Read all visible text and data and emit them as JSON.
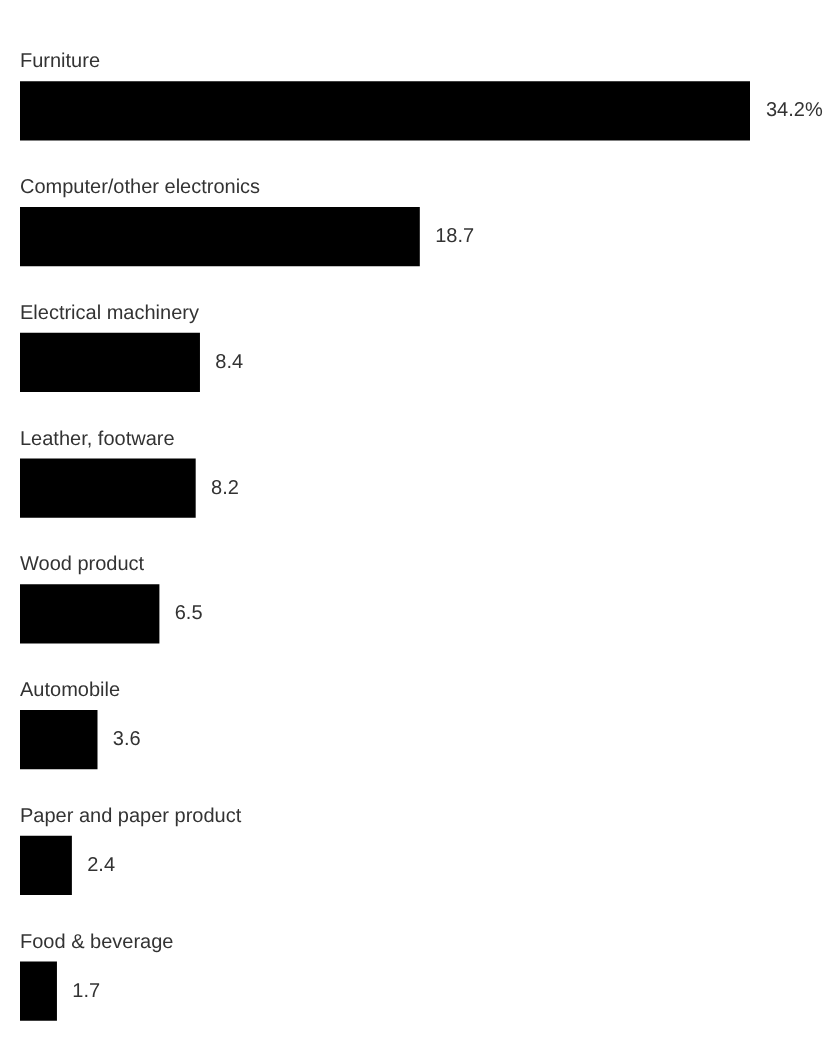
{
  "chart_data": {
    "type": "bar",
    "orientation": "horizontal",
    "categories": [
      "Furniture",
      "Computer/other electronics",
      "Electrical machinery",
      "Leather, footware",
      "Wood product",
      "Automobile",
      "Paper and paper product",
      "Food & beverage"
    ],
    "values": [
      34.2,
      18.7,
      8.4,
      8.2,
      6.5,
      3.6,
      2.4,
      1.7
    ],
    "value_labels": [
      "34.2%",
      "18.7",
      "8.4",
      "8.2",
      "6.5",
      "3.6",
      "2.4",
      "1.7"
    ],
    "color": "#000000"
  }
}
